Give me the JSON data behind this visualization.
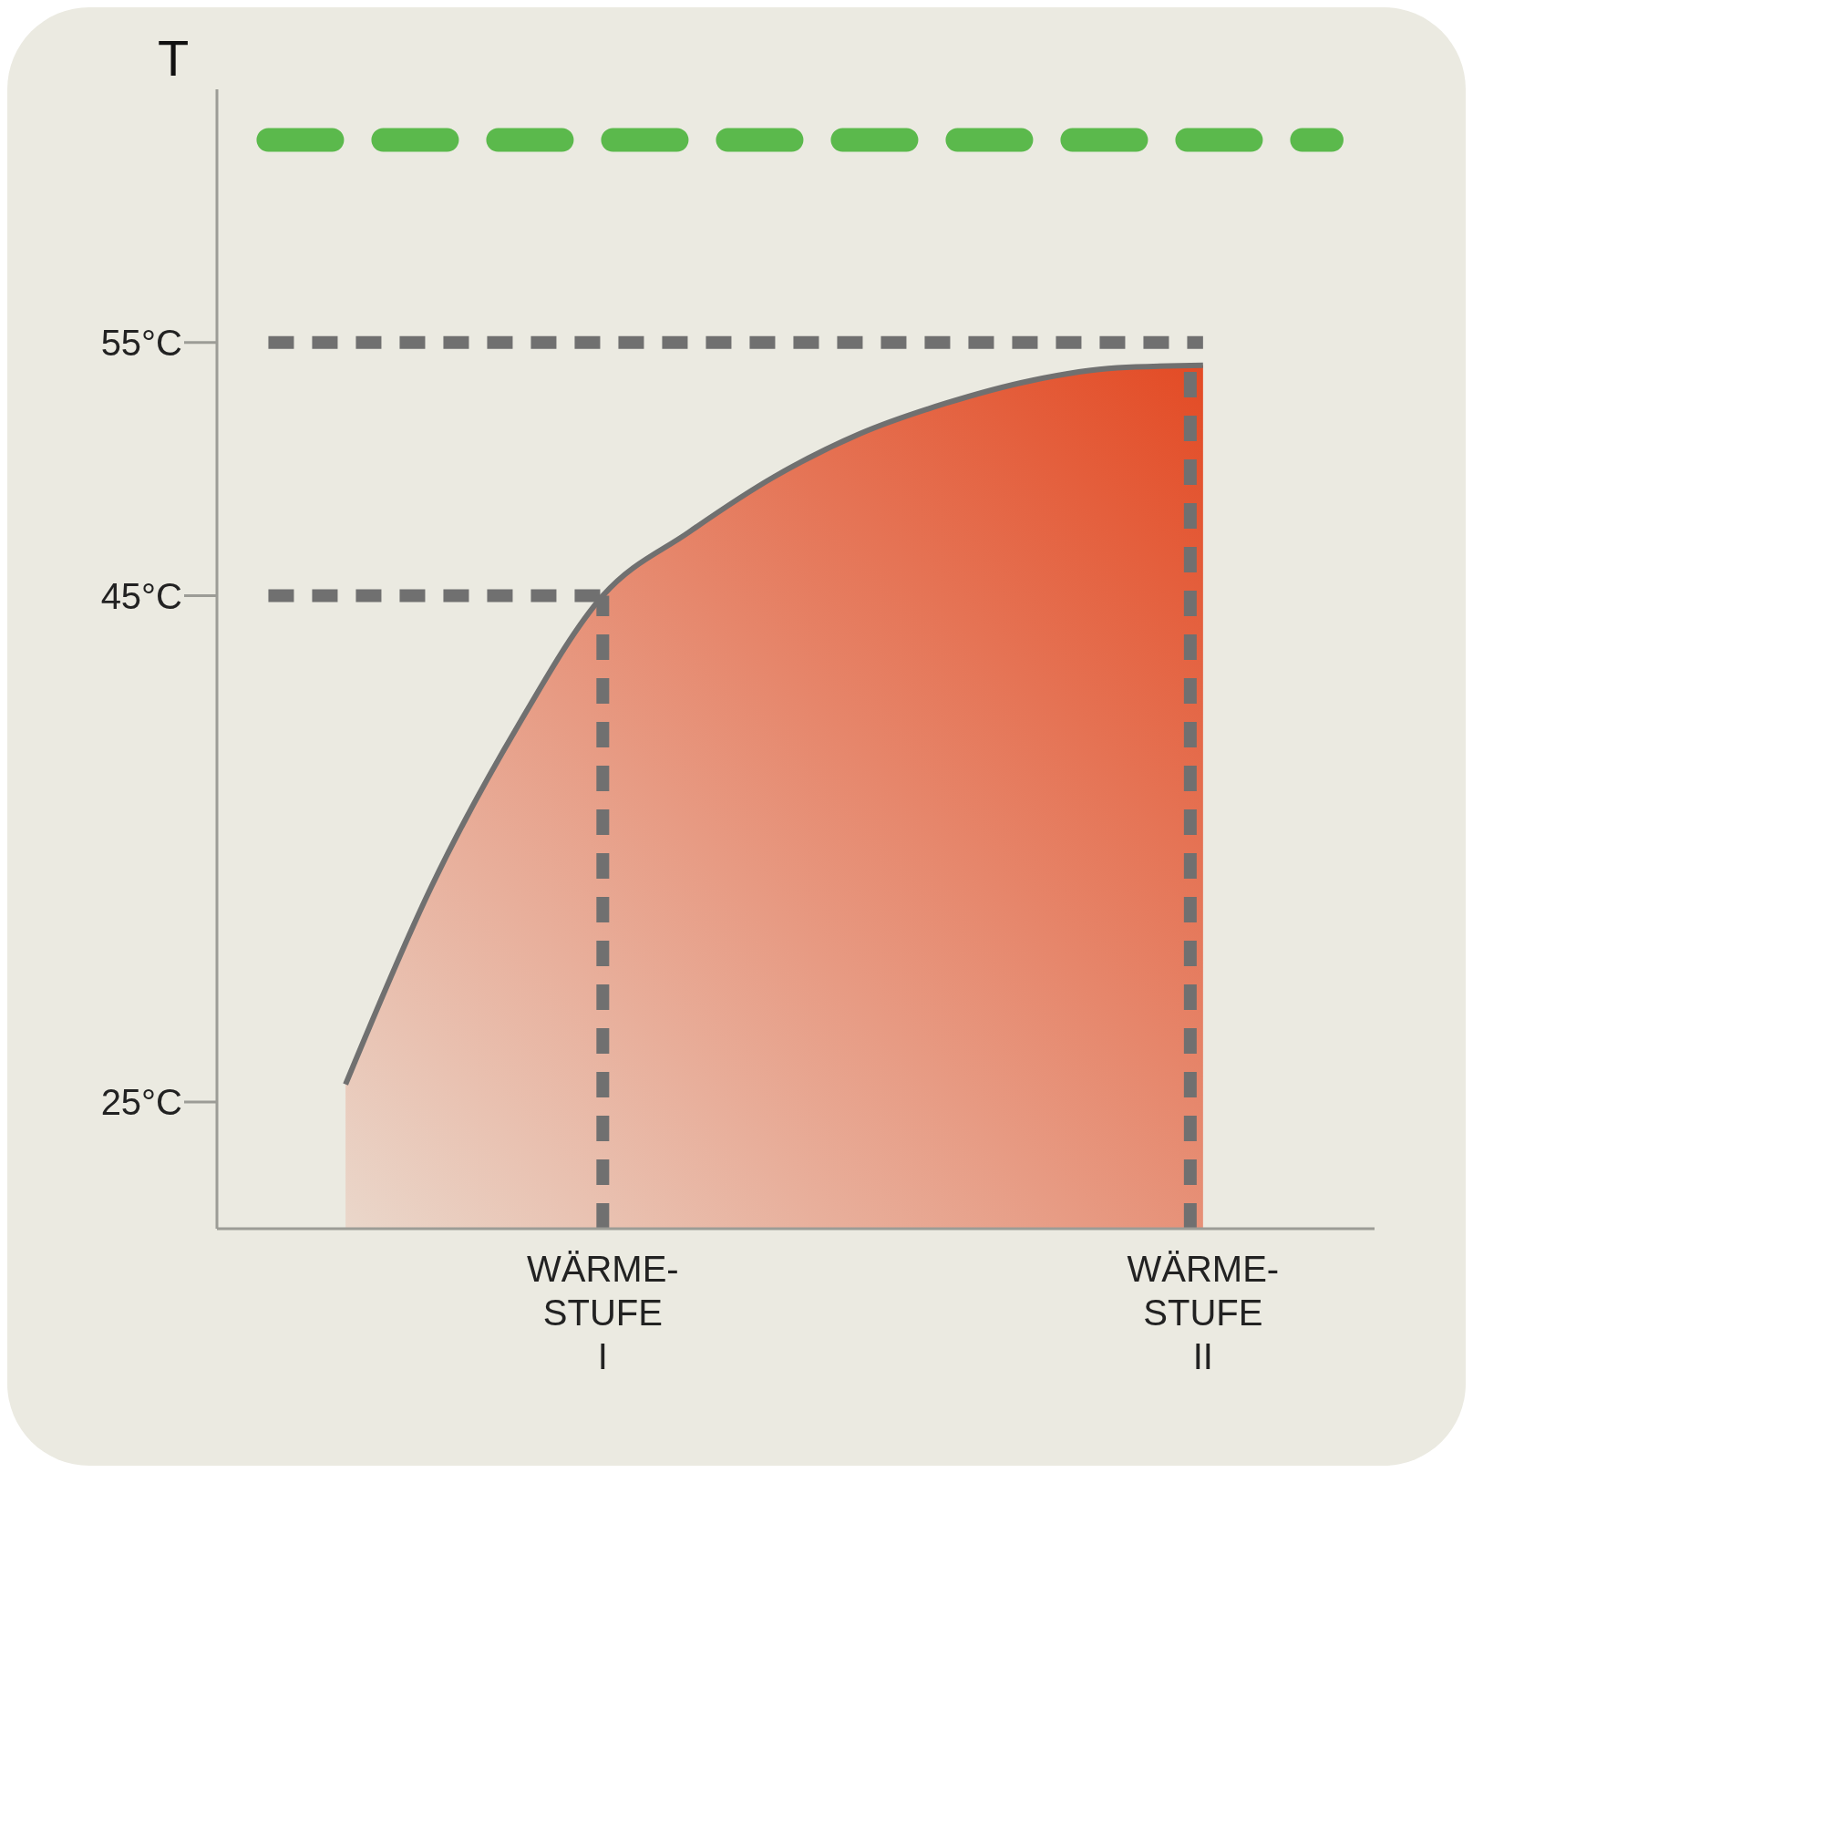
{
  "chart_data": {
    "type": "area",
    "ylabel": "T",
    "categories": [
      null,
      null,
      null,
      "WÄRME-\nSTUFE\nI",
      null,
      null,
      null,
      null,
      null,
      null,
      "WÄRME-\nSTUFE\nII"
    ],
    "series": [
      {
        "color": "#e34b25",
        "values": [
          25.7,
          33.5,
          39.8,
          45,
          47.5,
          49.7,
          51.4,
          52.6,
          53.5,
          54.0,
          54.1
        ]
      }
    ],
    "ylim": [
      20,
      65
    ],
    "yticks": [
      {
        "value": 25,
        "label": "25°C"
      },
      {
        "value": 45,
        "label": "45°C"
      },
      {
        "value": 55,
        "label": "55°C"
      }
    ],
    "ref_lines": [
      {
        "axis": "y",
        "value": 63,
        "color": "#5bb94c",
        "line_style": "dashed"
      },
      {
        "axis": "y",
        "value": 55,
        "color": "#707070",
        "line_style": "dashed"
      },
      {
        "axis": "y",
        "value": 45,
        "color": "#707070",
        "line_style": "dashed"
      },
      {
        "axis": "x",
        "value": "WÄRME-\nSTUFE\nI",
        "color": "#707070",
        "line_style": "dashed"
      },
      {
        "axis": "x",
        "value": "WÄRME-\nSTUFE\nII",
        "color": "#707070",
        "line_style": "dashed"
      }
    ],
    "grid": false,
    "legend": false
  }
}
